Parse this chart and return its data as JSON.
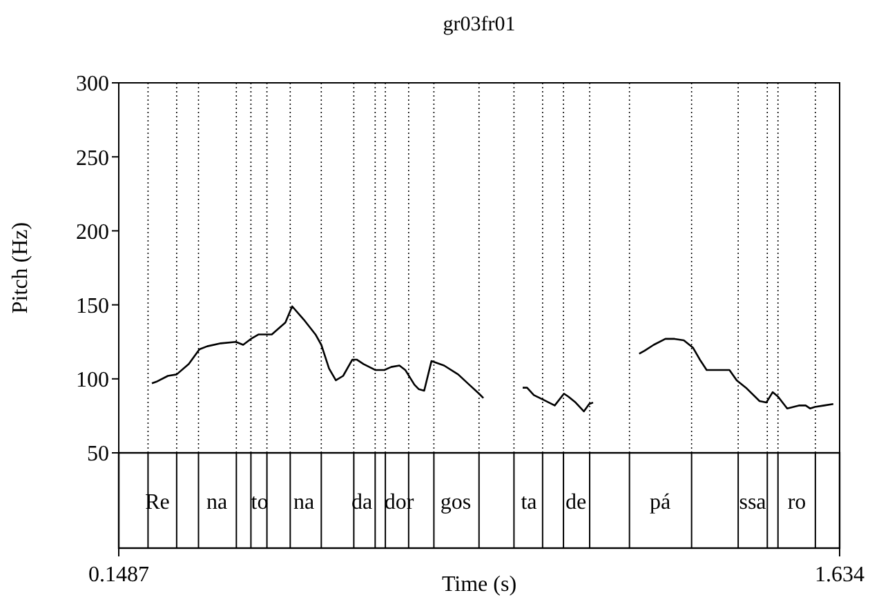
{
  "chart_data": {
    "type": "line",
    "title": "gr03fr01",
    "xlabel": "Time (s)",
    "ylabel": "Pitch (Hz)",
    "xlim": [
      0.1487,
      1.634
    ],
    "xticks": [
      0.1487,
      1.634
    ],
    "ylim": [
      50,
      300
    ],
    "yticks": [
      50,
      100,
      150,
      200,
      250,
      300
    ],
    "grid": false,
    "legend": false,
    "marker": "none",
    "line_style": "solid",
    "x": [
      0.217,
      0.226,
      0.25,
      0.268,
      0.293,
      0.315,
      0.331,
      0.359,
      0.39,
      0.405,
      0.421,
      0.437,
      0.464,
      0.492,
      0.506,
      0.53,
      0.554,
      0.566,
      0.582,
      0.596,
      0.611,
      0.63,
      0.639,
      0.653,
      0.677,
      0.696,
      0.71,
      0.727,
      0.739,
      0.758,
      0.767,
      0.778,
      0.793,
      0.819,
      0.848,
      0.871,
      0.891,
      0.9,
      0.94,
      0.981,
      0.99,
      1.004,
      1.023,
      1.047,
      1.066,
      1.075,
      1.09,
      1.107,
      1.118,
      1.126,
      1.17,
      1.221,
      1.232,
      1.251,
      1.275,
      1.294,
      1.313,
      1.332,
      1.346,
      1.36,
      1.407,
      1.422,
      1.441,
      1.469,
      1.483,
      1.496,
      1.507,
      1.526,
      1.55,
      1.564,
      1.573,
      1.583,
      1.602,
      1.621
    ],
    "series": [
      {
        "color": "#000000",
        "values": [
          97,
          98,
          102,
          103,
          110,
          120,
          122,
          124,
          125,
          123,
          127,
          130,
          130,
          138,
          149,
          140,
          130,
          123,
          107,
          99,
          102,
          113,
          113,
          110,
          106,
          106,
          108,
          109,
          106,
          96,
          93,
          92,
          112,
          109,
          103,
          96,
          90,
          87,
          null,
          94,
          94,
          89,
          86,
          82,
          90,
          88,
          84,
          78,
          83,
          84,
          null,
          117,
          119,
          123,
          127,
          127,
          126,
          121,
          113,
          106,
          106,
          99,
          94,
          85,
          84,
          91,
          88,
          80,
          82,
          82,
          80,
          81,
          82,
          83
        ]
      }
    ],
    "ref_lines": [
      {
        "axis": "x",
        "value": 0.209,
        "line_style": "dotted",
        "color": "#000000"
      },
      {
        "axis": "x",
        "value": 0.268,
        "line_style": "dotted",
        "color": "#000000"
      },
      {
        "axis": "x",
        "value": 0.313,
        "line_style": "dotted",
        "color": "#000000"
      },
      {
        "axis": "x",
        "value": 0.391,
        "line_style": "dotted",
        "color": "#000000"
      },
      {
        "axis": "x",
        "value": 0.421,
        "line_style": "dotted",
        "color": "#000000"
      },
      {
        "axis": "x",
        "value": 0.454,
        "line_style": "dotted",
        "color": "#000000"
      },
      {
        "axis": "x",
        "value": 0.502,
        "line_style": "dotted",
        "color": "#000000"
      },
      {
        "axis": "x",
        "value": 0.566,
        "line_style": "dotted",
        "color": "#000000"
      },
      {
        "axis": "x",
        "value": 0.633,
        "line_style": "dotted",
        "color": "#000000"
      },
      {
        "axis": "x",
        "value": 0.677,
        "line_style": "dotted",
        "color": "#000000"
      },
      {
        "axis": "x",
        "value": 0.698,
        "line_style": "dotted",
        "color": "#000000"
      },
      {
        "axis": "x",
        "value": 0.746,
        "line_style": "dotted",
        "color": "#000000"
      },
      {
        "axis": "x",
        "value": 0.798,
        "line_style": "dotted",
        "color": "#000000"
      },
      {
        "axis": "x",
        "value": 0.891,
        "line_style": "dotted",
        "color": "#000000"
      },
      {
        "axis": "x",
        "value": 0.963,
        "line_style": "dotted",
        "color": "#000000"
      },
      {
        "axis": "x",
        "value": 1.022,
        "line_style": "dotted",
        "color": "#000000"
      },
      {
        "axis": "x",
        "value": 1.065,
        "line_style": "dotted",
        "color": "#000000"
      },
      {
        "axis": "x",
        "value": 1.119,
        "line_style": "dotted",
        "color": "#000000"
      },
      {
        "axis": "x",
        "value": 1.201,
        "line_style": "dotted",
        "color": "#000000"
      },
      {
        "axis": "x",
        "value": 1.329,
        "line_style": "dotted",
        "color": "#000000"
      },
      {
        "axis": "x",
        "value": 1.425,
        "line_style": "dotted",
        "color": "#000000"
      },
      {
        "axis": "x",
        "value": 1.485,
        "line_style": "dotted",
        "color": "#000000"
      },
      {
        "axis": "x",
        "value": 1.507,
        "line_style": "dotted",
        "color": "#000000"
      },
      {
        "axis": "x",
        "value": 1.584,
        "line_style": "dotted",
        "color": "#000000"
      }
    ],
    "annotations": [
      "Re",
      "na",
      "to",
      "na",
      "da",
      "dor",
      "gos",
      "ta",
      "de",
      "pá",
      "ssa",
      "ro"
    ]
  }
}
